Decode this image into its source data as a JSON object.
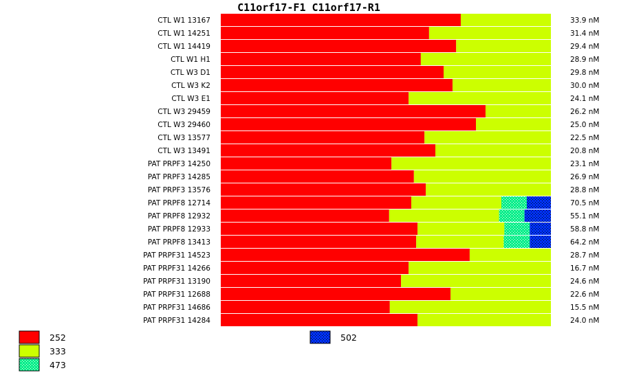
{
  "chart_data": {
    "type": "bar",
    "stacked": true,
    "normalized": true,
    "title": "C11orf17-F1  C11orf17-R1",
    "colors": {
      "252": "#ff0000",
      "333": "#ccff00",
      "473": "#00ee88",
      "502": "#0033ff"
    },
    "legend": [
      {
        "name": "252",
        "color": "#ff0000",
        "pattern": false
      },
      {
        "name": "333",
        "color": "#ccff00",
        "pattern": false
      },
      {
        "name": "473",
        "color": "#00ee88",
        "pattern": true
      },
      {
        "name": "502",
        "color": "#0033ff",
        "pattern": true
      }
    ],
    "rows": [
      {
        "label": "CTL W1 13167",
        "value": "33.9 nM",
        "fractions": [
          0.727,
          0.273,
          0,
          0
        ]
      },
      {
        "label": "CTL W1 14251",
        "value": "31.4 nM",
        "fractions": [
          0.631,
          0.369,
          0,
          0
        ]
      },
      {
        "label": "CTL W1 14419",
        "value": "29.4 nM",
        "fractions": [
          0.713,
          0.287,
          0,
          0
        ]
      },
      {
        "label": "CTL W1 H1",
        "value": "28.9 nM",
        "fractions": [
          0.606,
          0.394,
          0,
          0
        ]
      },
      {
        "label": "CTL W3 D1",
        "value": "29.8 nM",
        "fractions": [
          0.675,
          0.325,
          0,
          0
        ]
      },
      {
        "label": "CTL W3 K2",
        "value": "30.0 nM",
        "fractions": [
          0.702,
          0.298,
          0,
          0
        ]
      },
      {
        "label": "CTL W3 E1",
        "value": "24.1 nM",
        "fractions": [
          0.569,
          0.431,
          0,
          0
        ]
      },
      {
        "label": "CTL W3 29459",
        "value": "26.2 nM",
        "fractions": [
          0.802,
          0.198,
          0,
          0
        ]
      },
      {
        "label": "CTL W3 29460",
        "value": "25.0 nM",
        "fractions": [
          0.773,
          0.227,
          0,
          0
        ]
      },
      {
        "label": "CTL W3 13577",
        "value": "22.5 nM",
        "fractions": [
          0.617,
          0.383,
          0,
          0
        ]
      },
      {
        "label": "CTL W3 13491",
        "value": "20.8 nM",
        "fractions": [
          0.65,
          0.35,
          0,
          0
        ]
      },
      {
        "label": "PAT PRPF3 14250",
        "value": "23.1 nM",
        "fractions": [
          0.517,
          0.483,
          0,
          0
        ]
      },
      {
        "label": "PAT PRPF3 14285",
        "value": "26.9 nM",
        "fractions": [
          0.585,
          0.415,
          0,
          0
        ]
      },
      {
        "label": "PAT PRPF3 13576",
        "value": "28.8 nM",
        "fractions": [
          0.621,
          0.379,
          0,
          0
        ]
      },
      {
        "label": "PAT PRPF8 12714",
        "value": "70.5 nM",
        "fractions": [
          0.577,
          0.273,
          0.077,
          0.073
        ]
      },
      {
        "label": "PAT PRPF8 12932",
        "value": "55.1 nM",
        "fractions": [
          0.51,
          0.333,
          0.077,
          0.08
        ]
      },
      {
        "label": "PAT PRPF8 12933",
        "value": "58.8 nM",
        "fractions": [
          0.596,
          0.263,
          0.077,
          0.064
        ]
      },
      {
        "label": "PAT PRPF8 13413",
        "value": "64.2 nM",
        "fractions": [
          0.592,
          0.265,
          0.079,
          0.064
        ]
      },
      {
        "label": "PAT PRPF31 14523",
        "value": "28.7 nM",
        "fractions": [
          0.754,
          0.246,
          0,
          0
        ]
      },
      {
        "label": "PAT PRPF31 14266",
        "value": "16.7 nM",
        "fractions": [
          0.569,
          0.431,
          0,
          0
        ]
      },
      {
        "label": "PAT PRPF31 13190",
        "value": "24.6 nM",
        "fractions": [
          0.546,
          0.454,
          0,
          0
        ]
      },
      {
        "label": "PAT PRPF31 12688",
        "value": "22.6 nM",
        "fractions": [
          0.696,
          0.304,
          0,
          0
        ]
      },
      {
        "label": "PAT PRPF31 14686",
        "value": "15.5 nM",
        "fractions": [
          0.512,
          0.488,
          0,
          0
        ]
      },
      {
        "label": "PAT PRPF31 14284",
        "value": "24.0 nM",
        "fractions": [
          0.596,
          0.404,
          0,
          0
        ]
      }
    ]
  }
}
